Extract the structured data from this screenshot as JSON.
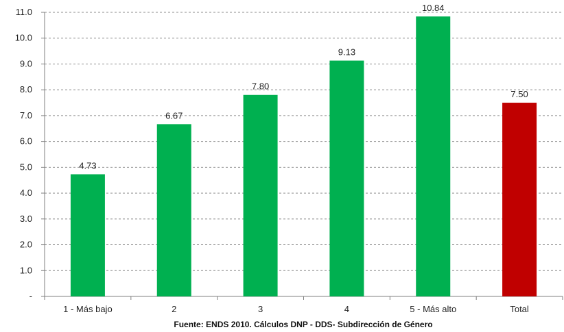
{
  "chart_data": {
    "type": "bar",
    "categories": [
      "1 - Más bajo",
      "2",
      "3",
      "4",
      "5 - Más alto",
      "Total"
    ],
    "values": [
      4.73,
      6.67,
      7.8,
      9.13,
      10.84,
      7.5
    ],
    "data_labels": [
      "4.73",
      "6.67",
      "7.80",
      "9.13",
      "10.84",
      "7.50"
    ],
    "bar_colors": [
      "#00b050",
      "#00b050",
      "#00b050",
      "#00b050",
      "#00b050",
      "#c00000"
    ],
    "ylim": [
      0,
      11
    ],
    "yticks": [
      0,
      1,
      2,
      3,
      4,
      5,
      6,
      7,
      8,
      9,
      10,
      11
    ],
    "ytick_labels": [
      "-",
      "1.0",
      "2.0",
      "3.0",
      "4.0",
      "5.0",
      "6.0",
      "7.0",
      "8.0",
      "9.0",
      "10.0",
      "11.0"
    ],
    "grid": "horizontal dashed",
    "title": "",
    "xlabel": "",
    "ylabel": "",
    "caption": "Fuente: ENDS 2010. Cálculos DNP - DDS- Subdirección de Género"
  }
}
